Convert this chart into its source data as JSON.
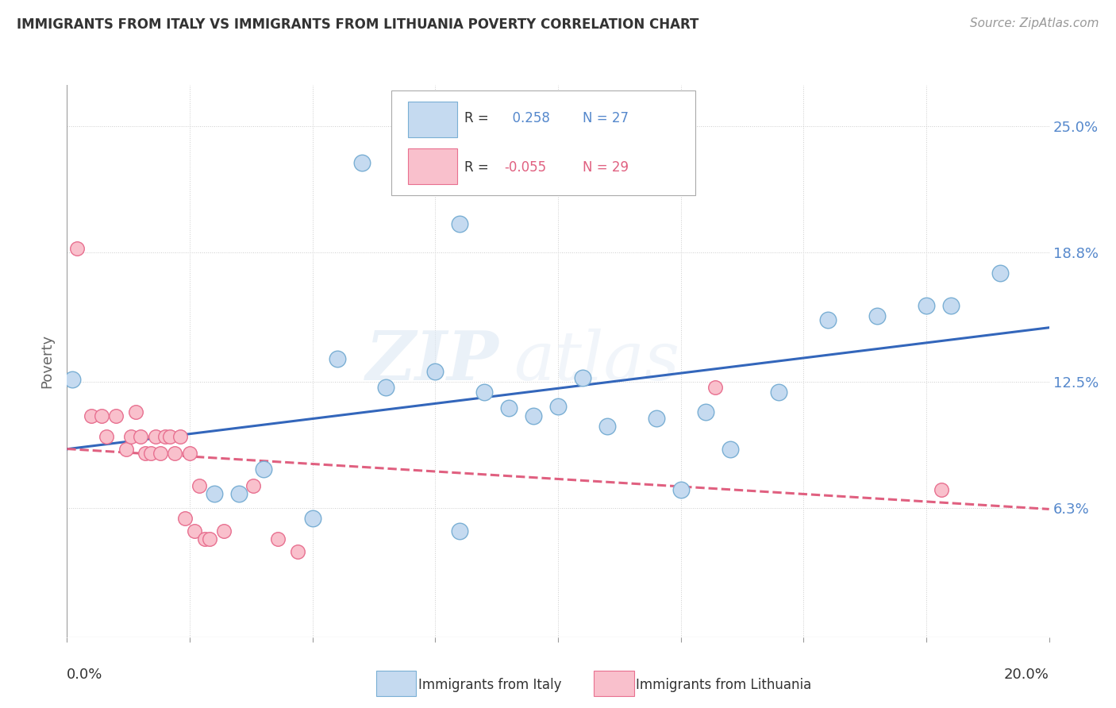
{
  "title": "IMMIGRANTS FROM ITALY VS IMMIGRANTS FROM LITHUANIA POVERTY CORRELATION CHART",
  "source": "Source: ZipAtlas.com",
  "ylabel": "Poverty",
  "xmin": 0.0,
  "xmax": 0.2,
  "ymin": 0.0,
  "ymax": 0.27,
  "yticks": [
    0.063,
    0.125,
    0.188,
    0.25
  ],
  "ytick_labels": [
    "6.3%",
    "12.5%",
    "18.8%",
    "25.0%"
  ],
  "italy_R": 0.258,
  "italy_N": 27,
  "lithuania_R": -0.055,
  "lithuania_N": 29,
  "italy_color": "#c5daf0",
  "italy_edge": "#7aafd4",
  "lithuania_color": "#f9c0cc",
  "lithuania_edge": "#e87090",
  "italy_trend_color": "#3366bb",
  "lithuania_trend_color": "#e06080",
  "watermark_zip": "ZIP",
  "watermark_atlas": "atlas",
  "italy_x": [
    0.001,
    0.055,
    0.065,
    0.075,
    0.085,
    0.095,
    0.1,
    0.105,
    0.11,
    0.12,
    0.13,
    0.135,
    0.145,
    0.155,
    0.165,
    0.175,
    0.18,
    0.19,
    0.06,
    0.08,
    0.09,
    0.03,
    0.035,
    0.125,
    0.08,
    0.04,
    0.05
  ],
  "italy_y": [
    0.126,
    0.136,
    0.122,
    0.13,
    0.12,
    0.108,
    0.113,
    0.127,
    0.103,
    0.107,
    0.11,
    0.092,
    0.12,
    0.155,
    0.157,
    0.162,
    0.162,
    0.178,
    0.232,
    0.202,
    0.112,
    0.07,
    0.07,
    0.072,
    0.052,
    0.082,
    0.058
  ],
  "lithuania_x": [
    0.002,
    0.005,
    0.007,
    0.008,
    0.01,
    0.012,
    0.013,
    0.014,
    0.015,
    0.016,
    0.017,
    0.018,
    0.019,
    0.02,
    0.021,
    0.022,
    0.023,
    0.024,
    0.025,
    0.026,
    0.027,
    0.028,
    0.029,
    0.032,
    0.038,
    0.043,
    0.047,
    0.132,
    0.178
  ],
  "lithuania_y": [
    0.19,
    0.108,
    0.108,
    0.098,
    0.108,
    0.092,
    0.098,
    0.11,
    0.098,
    0.09,
    0.09,
    0.098,
    0.09,
    0.098,
    0.098,
    0.09,
    0.098,
    0.058,
    0.09,
    0.052,
    0.074,
    0.048,
    0.048,
    0.052,
    0.074,
    0.048,
    0.042,
    0.122,
    0.072
  ],
  "background_color": "#ffffff",
  "grid_color": "#cccccc"
}
